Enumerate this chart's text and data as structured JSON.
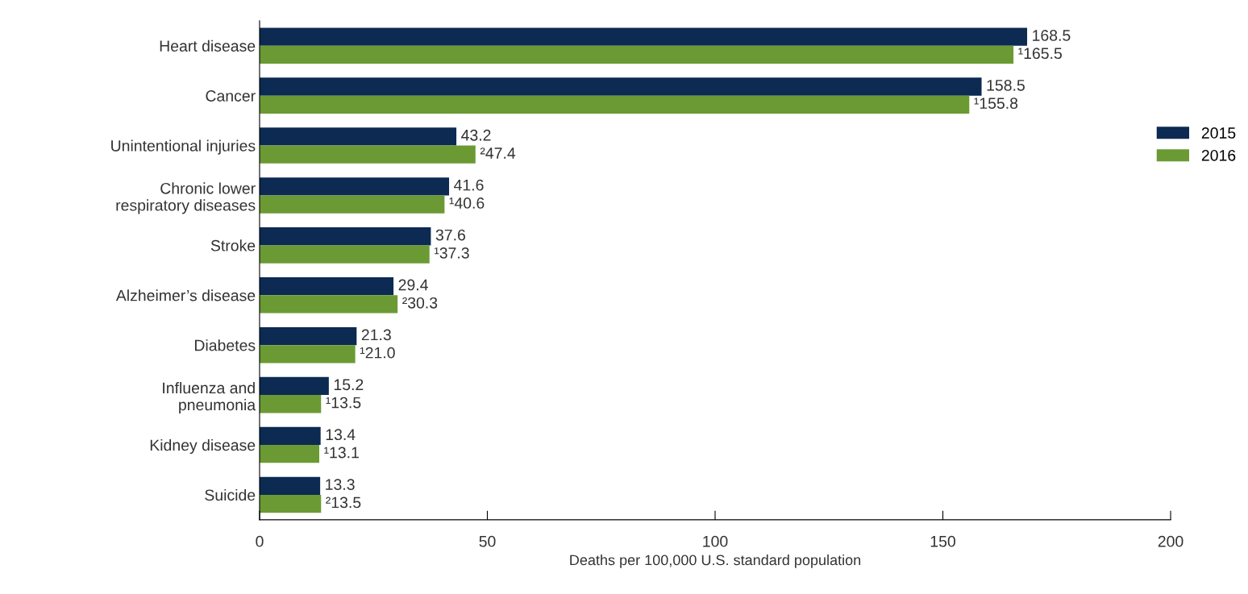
{
  "chart_data": {
    "type": "bar",
    "orientation": "horizontal",
    "categories": [
      "Heart disease",
      "Cancer",
      "Unintentional injuries",
      "Chronic lower\nrespiratory diseases",
      "Stroke",
      "Alzheimer’s disease",
      "Diabetes",
      "Influenza and\npneumonia",
      "Kidney disease",
      "Suicide"
    ],
    "series": [
      {
        "name": "2015",
        "color": "#0c2a52",
        "values": [
          168.5,
          158.5,
          43.2,
          41.6,
          37.6,
          29.4,
          21.3,
          15.2,
          13.4,
          13.3
        ],
        "value_labels": [
          "168.5",
          "158.5",
          "43.2",
          "41.6",
          "37.6",
          "29.4",
          "21.3",
          "15.2",
          "13.4",
          "13.3"
        ]
      },
      {
        "name": "2016",
        "color": "#6b9a34",
        "values": [
          165.5,
          155.8,
          47.4,
          40.6,
          37.3,
          30.3,
          21.0,
          13.5,
          13.1,
          13.5
        ],
        "value_labels": [
          "¹165.5",
          "¹155.8",
          "²47.4",
          "¹40.6",
          "¹37.3",
          "²30.3",
          "¹21.0",
          "¹13.5",
          "¹13.1",
          "²13.5"
        ]
      }
    ],
    "xlabel": "Deaths per 100,000 U.S. standard population",
    "xlim": [
      0,
      200
    ],
    "xticks": [
      0,
      50,
      100,
      150,
      200
    ],
    "grid": false,
    "legend": "right"
  }
}
